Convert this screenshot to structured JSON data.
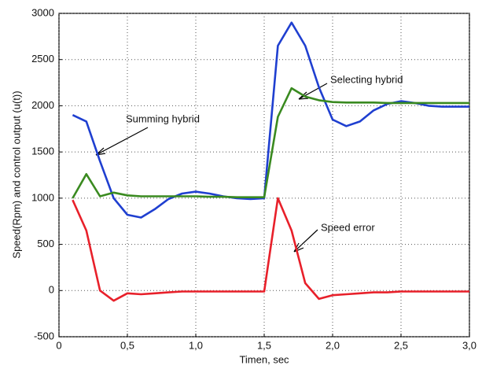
{
  "chart_data": {
    "type": "line",
    "xlabel": "Timen, sec",
    "ylabel": "Speed(Rpm) and control output (u(t))",
    "annotations": [
      "Summing hybrid",
      "Selecting hybrid",
      "Speed error"
    ],
    "x": [
      0.1,
      0.2,
      0.3,
      0.4,
      0.5,
      0.6,
      0.7,
      0.8,
      0.9,
      1.0,
      1.1,
      1.2,
      1.3,
      1.4,
      1.5,
      1.6,
      1.7,
      1.8,
      1.9,
      2.0,
      2.1,
      2.2,
      2.3,
      2.4,
      2.5,
      2.6,
      2.7,
      2.8,
      2.9,
      3.0
    ],
    "series": [
      {
        "color": "#1f3fd0",
        "values": [
          1900,
          1830,
          1400,
          1000,
          820,
          790,
          880,
          990,
          1050,
          1070,
          1050,
          1020,
          1000,
          990,
          1000,
          2650,
          2900,
          2650,
          2200,
          1850,
          1780,
          1830,
          1950,
          2020,
          2050,
          2030,
          2000,
          1990,
          1990,
          1990
        ]
      },
      {
        "color": "#3a8a20",
        "values": [
          1000,
          1260,
          1020,
          1060,
          1030,
          1020,
          1020,
          1020,
          1020,
          1020,
          1015,
          1015,
          1010,
          1010,
          1010,
          1880,
          2190,
          2100,
          2060,
          2040,
          2035,
          2035,
          2035,
          2030,
          2030,
          2030,
          2030,
          2030,
          2030,
          2030
        ]
      },
      {
        "color": "#e8202a",
        "values": [
          980,
          650,
          0,
          -110,
          -30,
          -40,
          -30,
          -20,
          -10,
          -10,
          -10,
          -10,
          -10,
          -10,
          -10,
          1000,
          650,
          80,
          -90,
          -50,
          -40,
          -30,
          -20,
          -20,
          -10,
          -10,
          -10,
          -10,
          -10,
          -10
        ]
      }
    ],
    "xlim": [
      0,
      3.0
    ],
    "xticks": [
      0,
      {
        "value": 0.5,
        "label": "0,5"
      },
      {
        "value": 1.0,
        "label": "1,0"
      },
      {
        "value": 1.5,
        "label": "1,5"
      },
      {
        "value": 2.0,
        "label": "2,0"
      },
      {
        "value": 2.5,
        "label": "2,5"
      },
      {
        "value": 3.0,
        "label": "3,0"
      }
    ],
    "ylim": [
      -500,
      3000
    ],
    "yticks": [
      -500,
      0,
      500,
      1000,
      1500,
      2000,
      2500,
      3000
    ],
    "grid": true
  }
}
